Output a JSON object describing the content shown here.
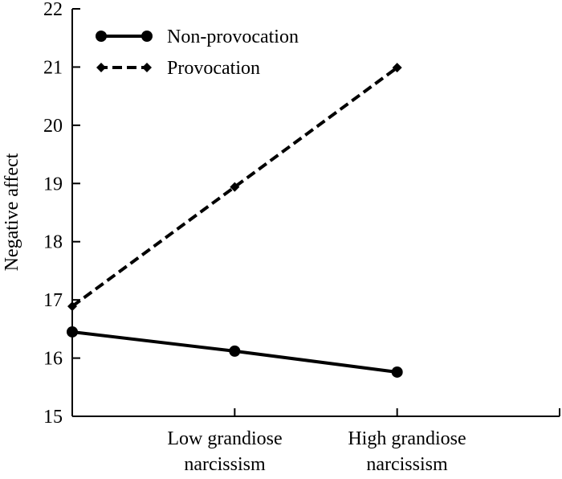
{
  "chart_data": {
    "type": "line",
    "title": "",
    "xlabel": "",
    "ylabel": "Negative affect",
    "ylim": [
      15,
      22
    ],
    "yticks": [
      "15",
      "16",
      "17",
      "18",
      "19",
      "20",
      "21",
      "22"
    ],
    "categories": [
      "Low grandiose narcissism",
      "High grandiose narcissism"
    ],
    "category_lines": [
      [
        "Low grandiose",
        "narcissism"
      ],
      [
        "High grandiose",
        "narcissism"
      ]
    ],
    "x": [
      1,
      2,
      3
    ],
    "grid": false,
    "legend_position": "top-left",
    "series": [
      {
        "name": "Non-provocation",
        "style": "solid",
        "marker": "circle",
        "values": [
          16.45,
          16.12,
          15.76
        ]
      },
      {
        "name": "Provocation",
        "style": "dashed",
        "marker": "diamond",
        "values": [
          16.89,
          18.94,
          20.99
        ]
      }
    ]
  }
}
